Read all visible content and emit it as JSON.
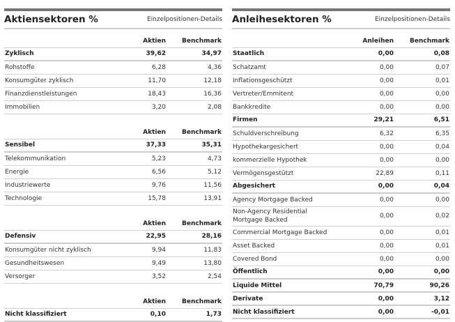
{
  "left": {
    "title": "Aktiensektoren %",
    "link": "Einzelpositionen-Details",
    "sections": [
      {
        "cols": [
          "Aktien",
          "Benchmark"
        ],
        "rows": [
          {
            "label": "Zyklisch",
            "a": "39,62",
            "b": "34,97",
            "bold": true
          },
          {
            "label": "Rohstoffe",
            "a": "6,28",
            "b": "4,36"
          },
          {
            "label": "Konsumgüter zyklisch",
            "a": "11,70",
            "b": "12,18"
          },
          {
            "label": "Finanzdienstleistungen",
            "a": "18,43",
            "b": "16,36"
          },
          {
            "label": "Immobilien",
            "a": "3,20",
            "b": "2,08"
          }
        ]
      },
      {
        "cols": [
          "Aktien",
          "Benchmark"
        ],
        "rows": [
          {
            "label": "Sensibel",
            "a": "37,33",
            "b": "35,31",
            "bold": true
          },
          {
            "label": "Telekommunikation",
            "a": "5,23",
            "b": "4,73"
          },
          {
            "label": "Energie",
            "a": "6,56",
            "b": "5,12"
          },
          {
            "label": "Industriewerte",
            "a": "9,76",
            "b": "11,56"
          },
          {
            "label": "Technologie",
            "a": "15,78",
            "b": "13,91"
          }
        ]
      },
      {
        "cols": [
          "Aktien",
          "Benchmark"
        ],
        "rows": [
          {
            "label": "Defensiv",
            "a": "22,95",
            "b": "28,16",
            "bold": true
          },
          {
            "label": "Konsumgüter nicht zyklisch",
            "a": "9,94",
            "b": "11,83"
          },
          {
            "label": "Gesundheitswesen",
            "a": "9,49",
            "b": "13,80"
          },
          {
            "label": "Versorger",
            "a": "3,52",
            "b": "2,54"
          }
        ]
      },
      {
        "cols": [
          "Aktien",
          "Benchmark"
        ],
        "rows": [
          {
            "label": "Nicht klassifiziert",
            "a": "0,10",
            "b": "1,73",
            "bold": true
          }
        ]
      }
    ]
  },
  "right": {
    "title": "Anleihesektoren %",
    "link": "Einzelpositionen-Details",
    "sections": [
      {
        "cols": [
          "Anleihen",
          "Benchmark"
        ],
        "rows": [
          {
            "label": "Staatlich",
            "a": "0,00",
            "b": "0,08",
            "bold": true
          },
          {
            "label": "Schatzamt",
            "a": "0,00",
            "b": "0,07"
          },
          {
            "label": "Inflationsgeschützt",
            "a": "0,00",
            "b": "0,01"
          },
          {
            "label": "Vertreter/Emmitent",
            "a": "0,00",
            "b": "0,00"
          },
          {
            "label": "Bankkredite",
            "a": "0,00",
            "b": "0,00"
          },
          {
            "label": "Firmen",
            "a": "29,21",
            "b": "6,51",
            "bold": true
          },
          {
            "label": "Schuldverschreibung",
            "a": "6,32",
            "b": "6,35"
          },
          {
            "label": "Hypothekargesichert",
            "a": "0,00",
            "b": "0,04"
          },
          {
            "label": "kommerzielle Hypothek",
            "a": "0,00",
            "b": "0,00"
          },
          {
            "label": "Vermögensgestützt",
            "a": "22,89",
            "b": "0,11"
          },
          {
            "label": "Abgesichert",
            "a": "0,00",
            "b": "0,04",
            "bold": true
          },
          {
            "label": "Agency Mortgage Backed",
            "a": "0,00",
            "b": "0,00"
          },
          {
            "label": "Non-Agency Residential Mortgage Backed",
            "a": "0,00",
            "b": "0,02",
            "two": true
          },
          {
            "label": "Commercial Mortgage Backed",
            "a": "0,00",
            "b": "0,01"
          },
          {
            "label": "Asset Backed",
            "a": "0,00",
            "b": "0,01"
          },
          {
            "label": "Covered Bond",
            "a": "0,00",
            "b": "0,00"
          },
          {
            "label": "Öffentlich",
            "a": "0,00",
            "b": "0,00",
            "bold": true
          },
          {
            "label": "Liquide Mittel",
            "a": "70,79",
            "b": "90,26",
            "bold": true
          },
          {
            "label": "Derivate",
            "a": "0,00",
            "b": "3,12",
            "bold": true
          },
          {
            "label": "Nicht klassifiziert",
            "a": "0,00",
            "b": "-0,01",
            "bold": true
          }
        ]
      }
    ]
  }
}
